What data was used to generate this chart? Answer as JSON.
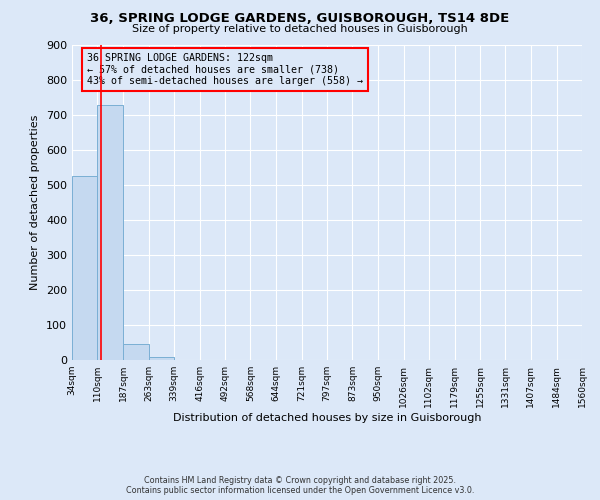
{
  "title1": "36, SPRING LODGE GARDENS, GUISBOROUGH, TS14 8DE",
  "title2": "Size of property relative to detached houses in Guisborough",
  "xlabel": "Distribution of detached houses by size in Guisborough",
  "ylabel": "Number of detached properties",
  "bin_edges": [
    34,
    110,
    187,
    263,
    339,
    416,
    492,
    568,
    644,
    721,
    797,
    873,
    950,
    1026,
    1102,
    1179,
    1255,
    1331,
    1407,
    1484,
    1560
  ],
  "bar_heights": [
    525,
    728,
    47,
    10,
    0,
    0,
    0,
    0,
    0,
    0,
    0,
    0,
    0,
    0,
    0,
    0,
    0,
    0,
    0,
    0
  ],
  "bar_color": "#c5d9f0",
  "bar_edge_color": "#7aafd4",
  "subject_size": 122,
  "subject_line_color": "red",
  "annotation_title": "36 SPRING LODGE GARDENS: 122sqm",
  "annotation_line1": "← 57% of detached houses are smaller (738)",
  "annotation_line2": "43% of semi-detached houses are larger (558) →",
  "annotation_box_color": "red",
  "background_color": "#dce8f8",
  "ylim": [
    0,
    900
  ],
  "yticks": [
    0,
    100,
    200,
    300,
    400,
    500,
    600,
    700,
    800,
    900
  ],
  "footer_line1": "Contains HM Land Registry data © Crown copyright and database right 2025.",
  "footer_line2": "Contains public sector information licensed under the Open Government Licence v3.0."
}
